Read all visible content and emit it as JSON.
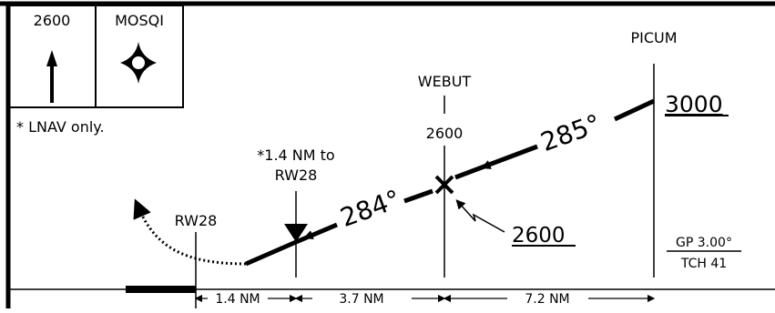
{
  "minimums_box": {
    "altitude": "2600",
    "waypoint_name": "MOSQI",
    "note": "* LNAV only."
  },
  "fixes": {
    "picum": {
      "name": "PICUM",
      "altitude": "3000"
    },
    "webut": {
      "name": "WEBUT",
      "altitude_above": "2600",
      "altitude_below": "2600"
    },
    "runway": {
      "name": "RW28"
    }
  },
  "courses": {
    "outer": "285°",
    "inner": "284°"
  },
  "stepdown_note": {
    "line1": "*1.4 NM to",
    "line2": "RW28"
  },
  "glidepath": {
    "angle": "GP 3.00°",
    "tch": "TCH 41"
  },
  "distances": [
    "1.4 NM",
    "3.7 NM",
    "7.2 NM"
  ]
}
